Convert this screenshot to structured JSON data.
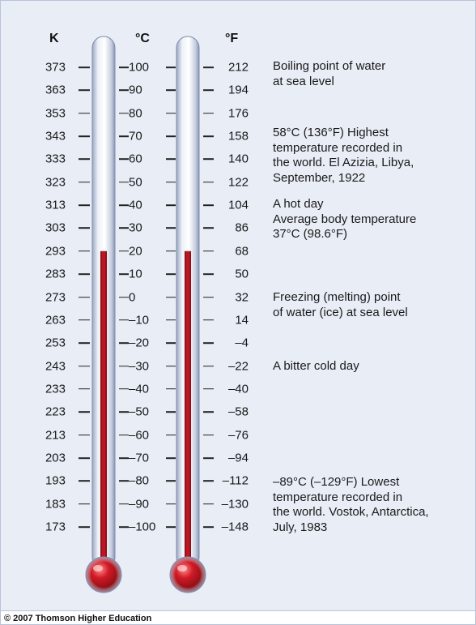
{
  "headers": {
    "kelvin": "K",
    "celsius": "°C",
    "fahrenheit": "°F"
  },
  "scale": {
    "kelvin": [
      "373",
      "363",
      "353",
      "343",
      "333",
      "323",
      "313",
      "303",
      "293",
      "283",
      "273",
      "263",
      "253",
      "243",
      "233",
      "223",
      "213",
      "203",
      "193",
      "183",
      "173"
    ],
    "celsius": [
      "100",
      "90",
      "80",
      "70",
      "60",
      "50",
      "40",
      "30",
      "20",
      "10",
      "0",
      "–10",
      "–20",
      "–30",
      "–40",
      "–50",
      "–60",
      "–70",
      "–80",
      "–90",
      "–100"
    ],
    "fahrenheit": [
      "212",
      "194",
      "176",
      "158",
      "140",
      "122",
      "104",
      "86",
      "68",
      "50",
      "32",
      "14",
      "–4",
      "–22",
      "–40",
      "–58",
      "–76",
      "–94",
      "–112",
      "–130",
      "–148"
    ]
  },
  "thermometer_reading_celsius": 20,
  "notes": [
    {
      "lines": [
        "Boiling point of water",
        "at sea level"
      ]
    },
    {
      "lines": [
        "58°C (136°F) Highest",
        "temperature recorded in",
        "the world. El Azizia, Libya,",
        "September, 1922"
      ]
    },
    {
      "lines": [
        "A hot day",
        "Average body temperature",
        "37°C  (98.6°F)"
      ]
    },
    {
      "lines": [
        "Freezing (melting) point",
        "of water (ice) at sea level"
      ]
    },
    {
      "lines": [
        "A bitter cold day"
      ]
    },
    {
      "lines": [
        "–89°C (–129°F) Lowest",
        "temperature recorded in",
        "the world. Vostok, Antarctica,",
        "July, 1983"
      ]
    }
  ],
  "colors": {
    "mercury": "#b0101c",
    "background": "#e8edf6"
  },
  "copyright": "© 2007 Thomson Higher Education"
}
